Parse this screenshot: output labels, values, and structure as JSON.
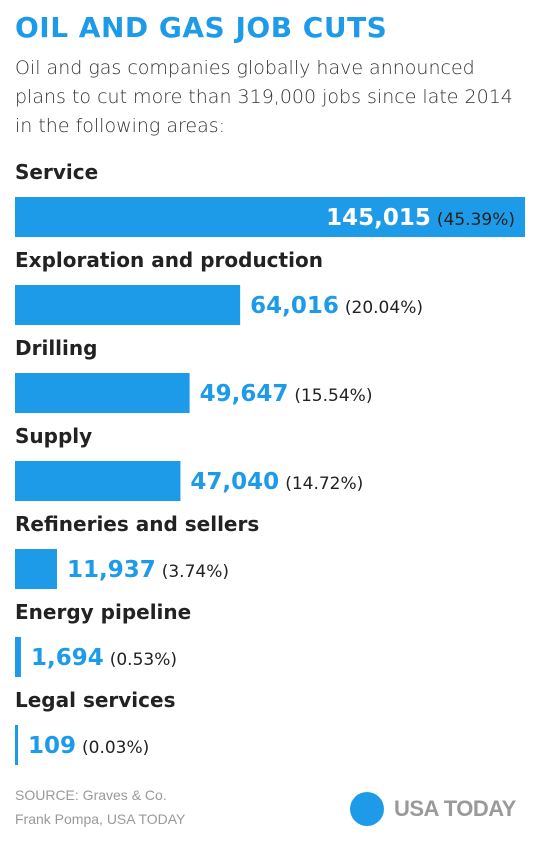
{
  "header": {
    "title": "OIL AND GAS JOB CUTS",
    "subtitle": "Oil and gas companies globally have announced plans to cut more than 319,000 jobs since late 2014 in the following areas:"
  },
  "chart_data": {
    "type": "bar",
    "orientation": "horizontal",
    "categories": [
      "Service",
      "Exploration and production",
      "Drilling",
      "Supply",
      "Refineries and sellers",
      "Energy pipeline",
      "Legal services"
    ],
    "values": [
      145015,
      64016,
      49647,
      47040,
      11937,
      1694,
      109
    ],
    "value_labels": [
      "145,015",
      "64,016",
      "49,647",
      "47,040",
      "11,937",
      "1,694",
      "109"
    ],
    "percent_labels": [
      "(45.39%)",
      "(20.04%)",
      "(15.54%)",
      "(14.72%)",
      "(3.74%)",
      "(0.53%)",
      "(0.03%)"
    ],
    "title": "OIL AND GAS JOB CUTS",
    "xlabel": "",
    "ylabel": "",
    "xlim": [
      0,
      145015
    ],
    "grid": false,
    "legend": "none"
  },
  "footer": {
    "source": "SOURCE: Graves & Co.",
    "credit": "Frank Pompa, USA TODAY"
  },
  "logo": {
    "text": "USA TODAY"
  },
  "colors": {
    "accent": "#1e9be8",
    "text": "#222222",
    "muted": "#9a9a9a"
  }
}
